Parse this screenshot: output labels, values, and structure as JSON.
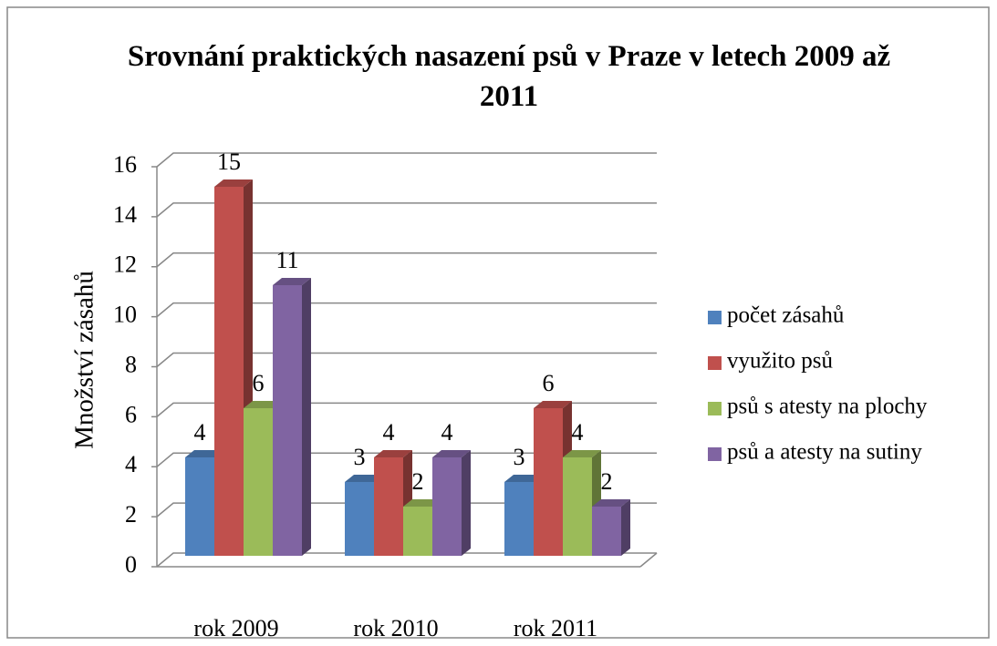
{
  "chart_data": {
    "type": "bar3d",
    "title": "Srovnání praktických nasazení psů v Praze v letech 2009 až 2011",
    "y_label": "Množství zásahů",
    "categories": [
      "rok 2009",
      "rok 2010",
      "rok 2011"
    ],
    "series": [
      {
        "name": "počet zásahů",
        "color": "#4f81bd",
        "values": [
          4,
          3,
          3
        ]
      },
      {
        "name": "využito psů",
        "color": "#c0504d",
        "values": [
          15,
          4,
          6
        ]
      },
      {
        "name": "psů s atesty na plochy",
        "color": "#9bbb59",
        "values": [
          6,
          2,
          4
        ]
      },
      {
        "name": "psů a atesty na sutiny",
        "color": "#8064a2",
        "values": [
          11,
          4,
          2
        ]
      }
    ],
    "ylim": [
      0,
      16
    ],
    "yticks": [
      0,
      2,
      4,
      6,
      8,
      10,
      12,
      14,
      16
    ],
    "grid": true,
    "legend": "right"
  }
}
